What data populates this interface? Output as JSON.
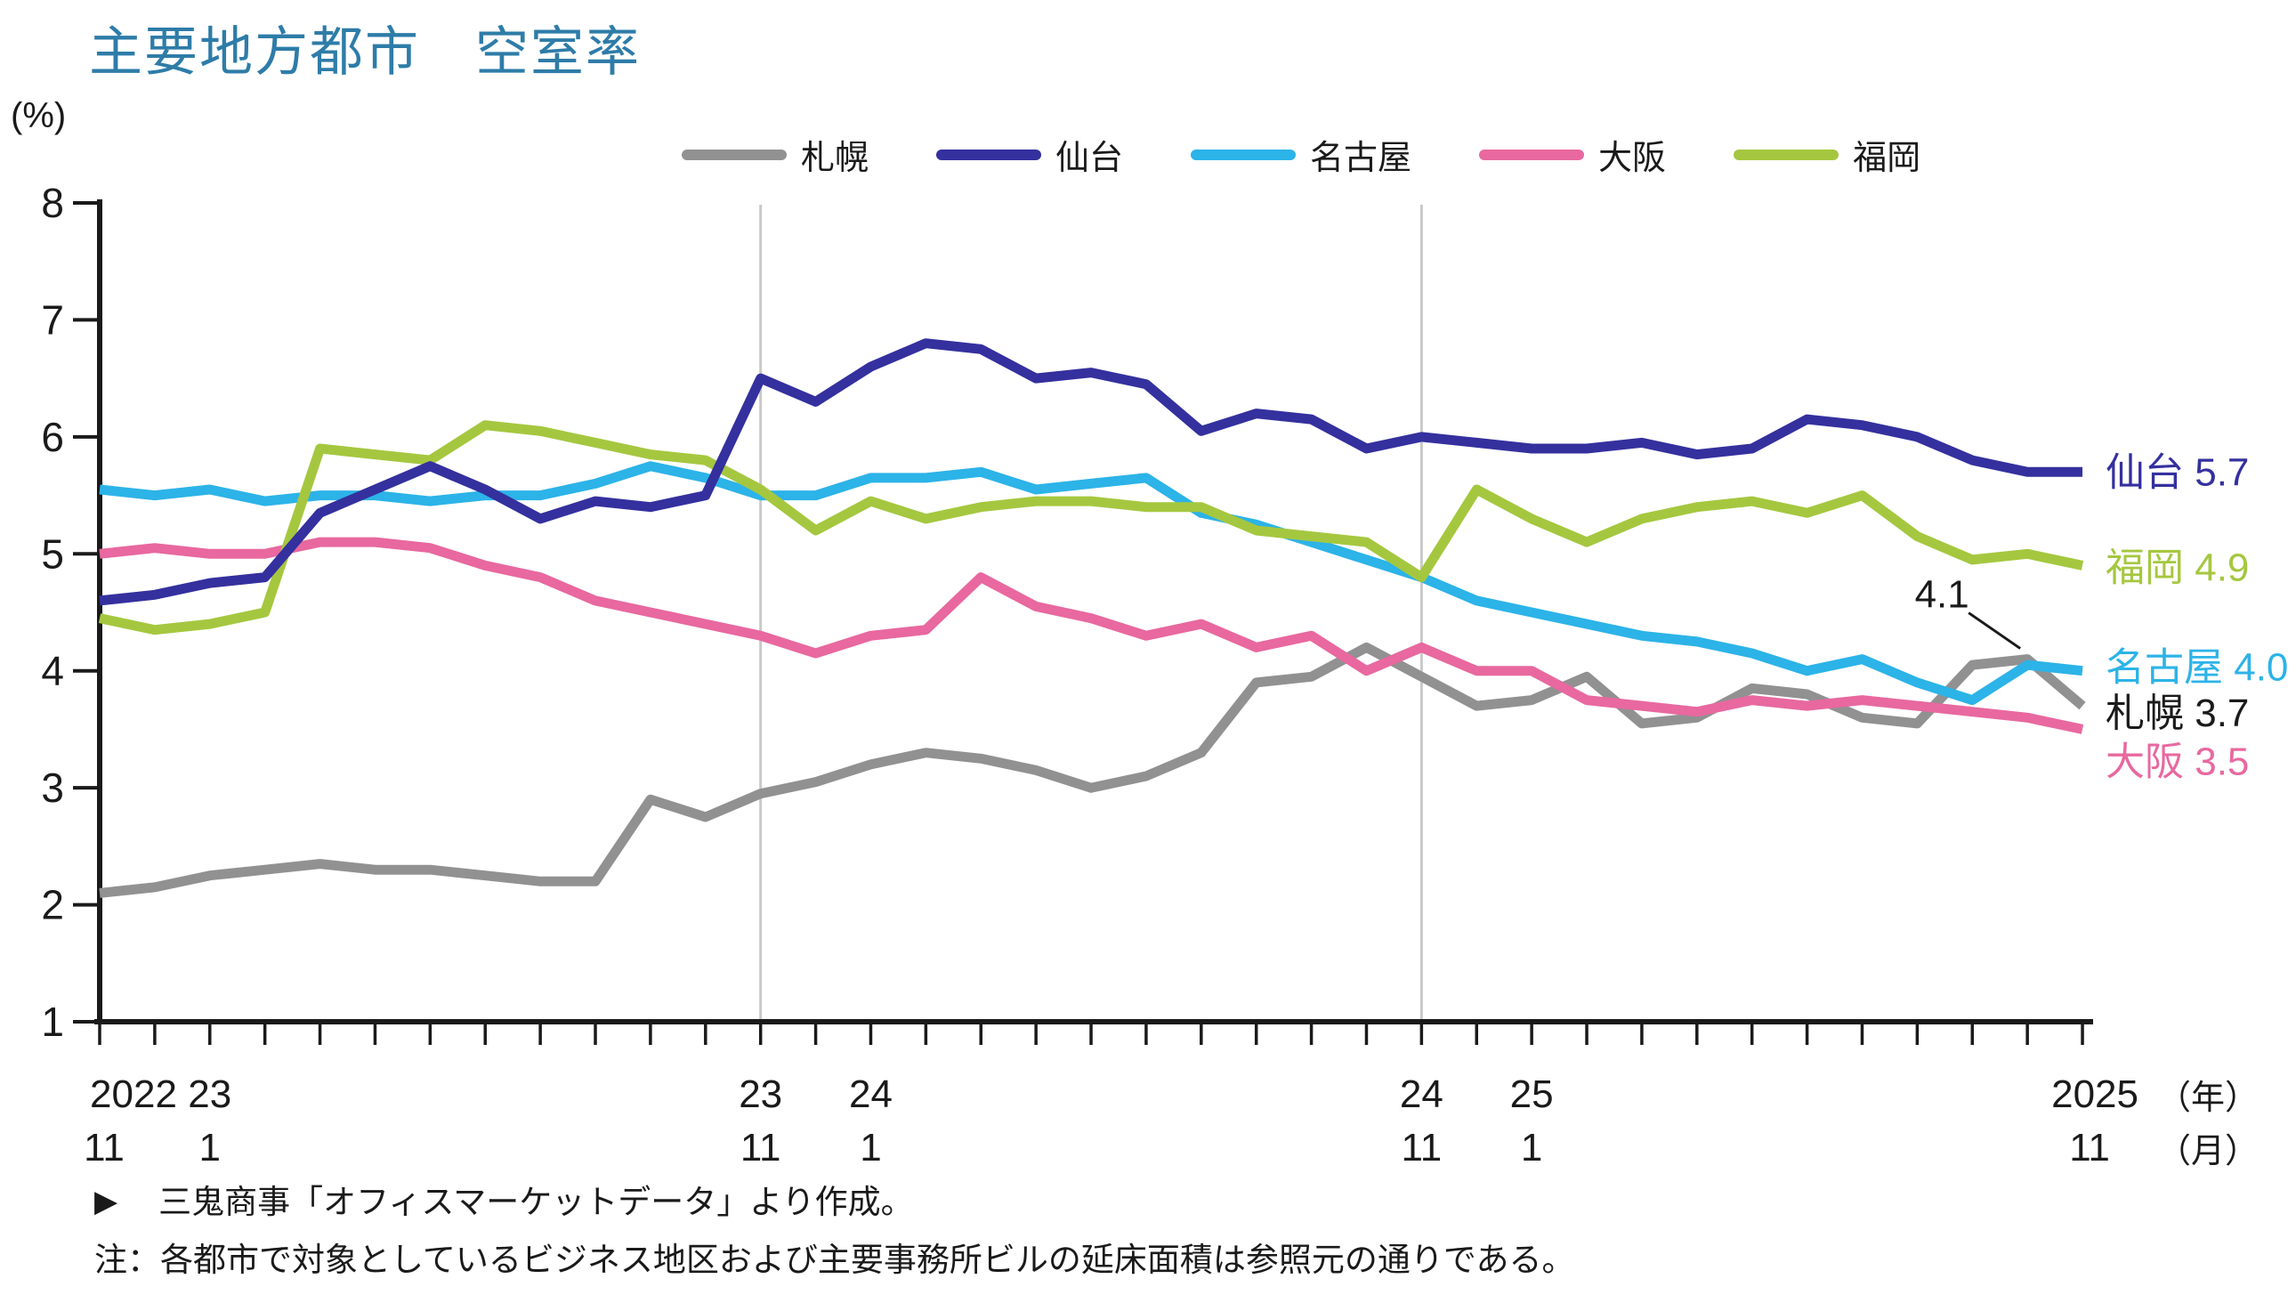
{
  "title": "主要地方都市　空室率",
  "y_axis": {
    "unit_label": "(%)",
    "min": 1,
    "max": 8,
    "ticks": [
      8,
      7,
      6,
      5,
      4,
      3,
      2,
      1
    ]
  },
  "x_axis": {
    "unit_year": "（年）",
    "unit_month": "（月）",
    "tick_labels": [
      {
        "month_index": 0,
        "year": "2022",
        "month": "11"
      },
      {
        "month_index": 2,
        "year": "23",
        "month": "1"
      },
      {
        "month_index": 12,
        "year": "23",
        "month": "11"
      },
      {
        "month_index": 14,
        "year": "24",
        "month": "1"
      },
      {
        "month_index": 24,
        "year": "24",
        "month": "11"
      },
      {
        "month_index": 26,
        "year": "25",
        "month": "1"
      },
      {
        "month_index": 36,
        "year": "2025",
        "month": "11"
      }
    ]
  },
  "chart_data": {
    "type": "line",
    "title": "主要地方都市　空室率",
    "ylabel": "(%)",
    "ylim": [
      1,
      8
    ],
    "grid": "vertical-guides-only",
    "legend_position": "top",
    "x": [
      "2022/11",
      "2022/12",
      "2023/1",
      "2023/2",
      "2023/3",
      "2023/4",
      "2023/5",
      "2023/6",
      "2023/7",
      "2023/8",
      "2023/9",
      "2023/10",
      "2023/11",
      "2023/12",
      "2024/1",
      "2024/2",
      "2024/3",
      "2024/4",
      "2024/5",
      "2024/6",
      "2024/7",
      "2024/8",
      "2024/9",
      "2024/10",
      "2024/11",
      "2024/12",
      "2025/1",
      "2025/2",
      "2025/3",
      "2025/4",
      "2025/5",
      "2025/6",
      "2025/7",
      "2025/8",
      "2025/9",
      "2025/10",
      "2025/11"
    ],
    "gridline_month_indices": [
      12,
      24
    ],
    "series": [
      {
        "name": "札幌",
        "color": "#919191",
        "end_value": "3.7",
        "end_label_color": "#1a1a1a",
        "end_dy": 8,
        "values": [
          2.1,
          2.15,
          2.25,
          2.3,
          2.35,
          2.3,
          2.3,
          2.25,
          2.2,
          2.2,
          2.9,
          2.75,
          2.95,
          3.05,
          3.2,
          3.3,
          3.25,
          3.15,
          3.0,
          3.1,
          3.3,
          3.9,
          3.95,
          4.2,
          3.95,
          3.7,
          3.75,
          3.95,
          3.55,
          3.6,
          3.85,
          3.8,
          3.6,
          3.55,
          4.05,
          4.1,
          3.7
        ]
      },
      {
        "name": "仙台",
        "color": "#34309e",
        "end_value": "5.7",
        "end_label_color": "#34309e",
        "end_dy": 0,
        "values": [
          4.6,
          4.65,
          4.75,
          4.8,
          5.35,
          5.55,
          5.75,
          5.55,
          5.3,
          5.45,
          5.4,
          5.5,
          6.5,
          6.3,
          6.6,
          6.8,
          6.75,
          6.5,
          6.55,
          6.45,
          6.05,
          6.2,
          6.15,
          5.9,
          6.0,
          5.95,
          5.9,
          5.9,
          5.95,
          5.85,
          5.9,
          6.15,
          6.1,
          6.0,
          5.8,
          5.7,
          5.7
        ]
      },
      {
        "name": "名古屋",
        "color": "#2cb3e8",
        "end_value": "4.0",
        "end_label_color": "#2cb3e8",
        "end_dy": -4,
        "values": [
          5.55,
          5.5,
          5.55,
          5.45,
          5.5,
          5.5,
          5.45,
          5.5,
          5.5,
          5.6,
          5.75,
          5.65,
          5.5,
          5.5,
          5.65,
          5.65,
          5.7,
          5.55,
          5.6,
          5.65,
          5.35,
          5.25,
          5.1,
          4.95,
          4.8,
          4.6,
          4.5,
          4.4,
          4.3,
          4.25,
          4.15,
          4.0,
          4.1,
          3.9,
          3.75,
          4.05,
          4.0
        ]
      },
      {
        "name": "大阪",
        "color": "#e8689f",
        "end_value": "3.5",
        "end_label_color": "#e8689f",
        "end_dy": 36,
        "values": [
          5.0,
          5.05,
          5.0,
          5.0,
          5.1,
          5.1,
          5.05,
          4.9,
          4.8,
          4.6,
          4.5,
          4.4,
          4.3,
          4.15,
          4.3,
          4.35,
          4.8,
          4.55,
          4.45,
          4.3,
          4.4,
          4.2,
          4.3,
          4.0,
          4.2,
          4.0,
          4.0,
          3.75,
          3.7,
          3.65,
          3.75,
          3.7,
          3.75,
          3.7,
          3.65,
          3.6,
          3.5
        ]
      },
      {
        "name": "福岡",
        "color": "#a5c73f",
        "end_value": "4.9",
        "end_label_color": "#a5c73f",
        "end_dy": 2,
        "values": [
          4.45,
          4.35,
          4.4,
          4.5,
          5.9,
          5.85,
          5.8,
          6.1,
          6.05,
          5.95,
          5.85,
          5.8,
          5.55,
          5.2,
          5.45,
          5.3,
          5.4,
          5.45,
          5.45,
          5.4,
          5.4,
          5.2,
          5.15,
          5.1,
          4.8,
          5.55,
          5.3,
          5.1,
          5.3,
          5.4,
          5.45,
          5.35,
          5.5,
          5.15,
          4.95,
          5.0,
          4.9
        ]
      }
    ],
    "draw_order": [
      0,
      3,
      2,
      4,
      1
    ],
    "annotation": {
      "text": "4.1",
      "series": "札幌",
      "month_index": 35,
      "value": 4.1
    }
  },
  "footer": {
    "marker": "▶",
    "source_line": "三鬼商事「オフィスマーケットデータ」より作成。",
    "note_line": "注：各都市で対象としているビジネス地区および主要事務所ビルの延床面積は参照元の通りである。"
  }
}
